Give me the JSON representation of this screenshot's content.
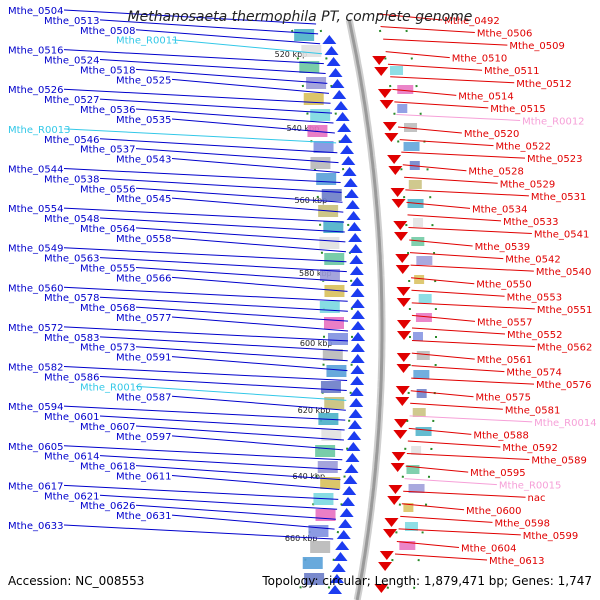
{
  "title": "Methanosaeta thermophila PT, complete genome",
  "footer": {
    "accession": "Accession: NC_008553",
    "topology": "Topology: circular; Length: 1,879,471 bp; Genes: 1,747"
  },
  "colors": {
    "forward_gene": "#0000cc",
    "forward_gene_fill": "#1c3cf0",
    "reverse_gene": "#e00000",
    "rna_forward": "#33c8e8",
    "rna_reverse": "#f6a0d8",
    "backbone": "#9a9a9a",
    "tick": "#2a8a2a"
  },
  "tick_labels": [
    "520 kbp",
    "540 kbp",
    "560 kbp",
    "580 kbp",
    "600 kbp",
    "620 kbp",
    "640 kbp",
    "660 kbp"
  ],
  "left_labels": [
    {
      "text": "Mthe_0504",
      "type": "gene"
    },
    {
      "text": "Mthe_0513",
      "type": "gene"
    },
    {
      "text": "Mthe_0508",
      "type": "gene"
    },
    {
      "text": "Mthe_R0011",
      "type": "rna"
    },
    {
      "text": "Mthe_0516",
      "type": "gene"
    },
    {
      "text": "Mthe_0524",
      "type": "gene"
    },
    {
      "text": "Mthe_0518",
      "type": "gene"
    },
    {
      "text": "Mthe_0525",
      "type": "gene"
    },
    {
      "text": "Mthe_0526",
      "type": "gene"
    },
    {
      "text": "Mthe_0527",
      "type": "gene"
    },
    {
      "text": "Mthe_0536",
      "type": "gene"
    },
    {
      "text": "Mthe_0535",
      "type": "gene"
    },
    {
      "text": "Mthe_R0013",
      "type": "rna"
    },
    {
      "text": "Mthe_0546",
      "type": "gene"
    },
    {
      "text": "Mthe_0537",
      "type": "gene"
    },
    {
      "text": "Mthe_0543",
      "type": "gene"
    },
    {
      "text": "Mthe_0544",
      "type": "gene"
    },
    {
      "text": "Mthe_0538",
      "type": "gene"
    },
    {
      "text": "Mthe_0556",
      "type": "gene"
    },
    {
      "text": "Mthe_0545",
      "type": "gene"
    },
    {
      "text": "Mthe_0554",
      "type": "gene"
    },
    {
      "text": "Mthe_0548",
      "type": "gene"
    },
    {
      "text": "Mthe_0564",
      "type": "gene"
    },
    {
      "text": "Mthe_0558",
      "type": "gene"
    },
    {
      "text": "Mthe_0549",
      "type": "gene"
    },
    {
      "text": "Mthe_0563",
      "type": "gene"
    },
    {
      "text": "Mthe_0555",
      "type": "gene"
    },
    {
      "text": "Mthe_0566",
      "type": "gene"
    },
    {
      "text": "Mthe_0560",
      "type": "gene"
    },
    {
      "text": "Mthe_0578",
      "type": "gene"
    },
    {
      "text": "Mthe_0568",
      "type": "gene"
    },
    {
      "text": "Mthe_0577",
      "type": "gene"
    },
    {
      "text": "Mthe_0572",
      "type": "gene"
    },
    {
      "text": "Mthe_0583",
      "type": "gene"
    },
    {
      "text": "Mthe_0573",
      "type": "gene"
    },
    {
      "text": "Mthe_0591",
      "type": "gene"
    },
    {
      "text": "Mthe_0582",
      "type": "gene"
    },
    {
      "text": "Mthe_0586",
      "type": "gene"
    },
    {
      "text": "Mthe_R0016",
      "type": "rna"
    },
    {
      "text": "Mthe_0587",
      "type": "gene"
    },
    {
      "text": "Mthe_0594",
      "type": "gene"
    },
    {
      "text": "Mthe_0601",
      "type": "gene"
    },
    {
      "text": "Mthe_0607",
      "type": "gene"
    },
    {
      "text": "Mthe_0597",
      "type": "gene"
    },
    {
      "text": "Mthe_0605",
      "type": "gene"
    },
    {
      "text": "Mthe_0614",
      "type": "gene"
    },
    {
      "text": "Mthe_0618",
      "type": "gene"
    },
    {
      "text": "Mthe_0611",
      "type": "gene"
    },
    {
      "text": "Mthe_0617",
      "type": "gene"
    },
    {
      "text": "Mthe_0621",
      "type": "gene"
    },
    {
      "text": "Mthe_0626",
      "type": "gene"
    },
    {
      "text": "Mthe_0631",
      "type": "gene"
    },
    {
      "text": "Mthe_0633",
      "type": "gene"
    }
  ],
  "right_labels": [
    {
      "text": "Mthe_0492",
      "type": "gene"
    },
    {
      "text": "Mthe_0506",
      "type": "gene"
    },
    {
      "text": "Mthe_0509",
      "type": "gene"
    },
    {
      "text": "Mthe_0510",
      "type": "gene"
    },
    {
      "text": "Mthe_0511",
      "type": "gene"
    },
    {
      "text": "Mthe_0512",
      "type": "gene"
    },
    {
      "text": "Mthe_0514",
      "type": "gene"
    },
    {
      "text": "Mthe_0515",
      "type": "gene"
    },
    {
      "text": "Mthe_R0012",
      "type": "rna"
    },
    {
      "text": "Mthe_0520",
      "type": "gene"
    },
    {
      "text": "Mthe_0522",
      "type": "gene"
    },
    {
      "text": "Mthe_0523",
      "type": "gene"
    },
    {
      "text": "Mthe_0528",
      "type": "gene"
    },
    {
      "text": "Mthe_0529",
      "type": "gene"
    },
    {
      "text": "Mthe_0531",
      "type": "gene"
    },
    {
      "text": "Mthe_0534",
      "type": "gene"
    },
    {
      "text": "Mthe_0533",
      "type": "gene"
    },
    {
      "text": "Mthe_0541",
      "type": "gene"
    },
    {
      "text": "Mthe_0539",
      "type": "gene"
    },
    {
      "text": "Mthe_0542",
      "type": "gene"
    },
    {
      "text": "Mthe_0540",
      "type": "gene"
    },
    {
      "text": "Mthe_0550",
      "type": "gene"
    },
    {
      "text": "Mthe_0553",
      "type": "gene"
    },
    {
      "text": "Mthe_0551",
      "type": "gene"
    },
    {
      "text": "Mthe_0557",
      "type": "gene"
    },
    {
      "text": "Mthe_0552",
      "type": "gene"
    },
    {
      "text": "Mthe_0562",
      "type": "gene"
    },
    {
      "text": "Mthe_0561",
      "type": "gene"
    },
    {
      "text": "Mthe_0574",
      "type": "gene"
    },
    {
      "text": "Mthe_0576",
      "type": "gene"
    },
    {
      "text": "Mthe_0575",
      "type": "gene"
    },
    {
      "text": "Mthe_0581",
      "type": "gene"
    },
    {
      "text": "Mthe_R0014",
      "type": "rna"
    },
    {
      "text": "Mthe_0588",
      "type": "gene"
    },
    {
      "text": "Mthe_0592",
      "type": "gene"
    },
    {
      "text": "Mthe_0589",
      "type": "gene"
    },
    {
      "text": "Mthe_0595",
      "type": "gene"
    },
    {
      "text": "Mthe_R0015",
      "type": "rna"
    },
    {
      "text": "nac",
      "type": "gene"
    },
    {
      "text": "Mthe_0600",
      "type": "gene"
    },
    {
      "text": "Mthe_0598",
      "type": "gene"
    },
    {
      "text": "Mthe_0599",
      "type": "gene"
    },
    {
      "text": "Mthe_0604",
      "type": "gene"
    },
    {
      "text": "Mthe_0613",
      "type": "gene"
    }
  ]
}
